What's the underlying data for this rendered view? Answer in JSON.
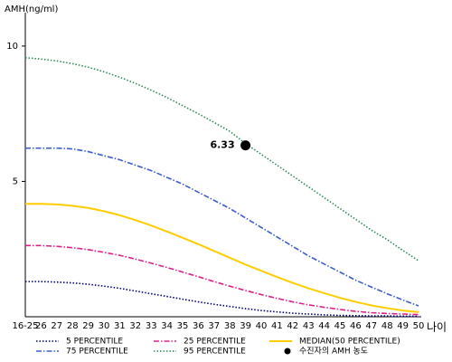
{
  "chart_data": {
    "type": "line",
    "y_label": "AMH(ng/ml)",
    "x_label": "나이",
    "categories": [
      "16-25",
      "26",
      "27",
      "28",
      "29",
      "30",
      "31",
      "32",
      "33",
      "34",
      "35",
      "36",
      "37",
      "38",
      "39",
      "40",
      "41",
      "42",
      "43",
      "44",
      "45",
      "46",
      "47",
      "48",
      "49",
      "50"
    ],
    "ylim": [
      0,
      11.3
    ],
    "yticks": [
      5,
      10
    ],
    "series": [
      {
        "name": "5 PERCENTILE",
        "color": "#000080",
        "dash": "dotted",
        "values": [
          1.3,
          1.3,
          1.28,
          1.25,
          1.2,
          1.13,
          1.05,
          0.95,
          0.85,
          0.75,
          0.65,
          0.55,
          0.46,
          0.38,
          0.3,
          0.23,
          0.18,
          0.13,
          0.1,
          0.07,
          0.05,
          0.04,
          0.03,
          0.03,
          0.02,
          0.02
        ]
      },
      {
        "name": "25 PERCENTILE",
        "color": "#e0208a",
        "dash": "dashdot",
        "values": [
          2.63,
          2.63,
          2.6,
          2.55,
          2.48,
          2.38,
          2.27,
          2.13,
          1.98,
          1.82,
          1.65,
          1.48,
          1.3,
          1.13,
          0.97,
          0.82,
          0.68,
          0.55,
          0.44,
          0.35,
          0.27,
          0.2,
          0.15,
          0.12,
          0.1,
          0.08
        ]
      },
      {
        "name": "MEDIAN(50 PERCENTILE)",
        "color": "#ffcc00",
        "dash": "solid",
        "values": [
          4.17,
          4.17,
          4.15,
          4.1,
          4.02,
          3.9,
          3.75,
          3.57,
          3.37,
          3.15,
          2.92,
          2.68,
          2.43,
          2.18,
          1.93,
          1.7,
          1.47,
          1.25,
          1.05,
          0.87,
          0.7,
          0.55,
          0.42,
          0.32,
          0.23,
          0.17
        ]
      },
      {
        "name": "75 PERCENTILE",
        "color": "#3a5fcd",
        "dash": "dashdot",
        "values": [
          6.23,
          6.23,
          6.23,
          6.2,
          6.1,
          5.95,
          5.8,
          5.6,
          5.4,
          5.15,
          4.9,
          4.6,
          4.3,
          4.0,
          3.65,
          3.3,
          2.95,
          2.6,
          2.25,
          1.95,
          1.65,
          1.35,
          1.1,
          0.85,
          0.62,
          0.4
        ]
      },
      {
        "name": "95 PERCENTILE",
        "color": "#2e8b57",
        "dash": "dotted",
        "values": [
          9.57,
          9.52,
          9.45,
          9.35,
          9.22,
          9.05,
          8.85,
          8.62,
          8.37,
          8.1,
          7.8,
          7.5,
          7.18,
          6.85,
          6.4,
          6.0,
          5.6,
          5.2,
          4.8,
          4.4,
          4.0,
          3.6,
          3.2,
          2.85,
          2.45,
          2.07
        ]
      },
      {
        "name": "수진자의 AMH 농도",
        "color": "#000000",
        "dash": "marker",
        "values": [
          null,
          null,
          null,
          null,
          null,
          null,
          null,
          null,
          null,
          null,
          null,
          null,
          null,
          null,
          6.33,
          null,
          null,
          null,
          null,
          null,
          null,
          null,
          null,
          null,
          null,
          null
        ]
      }
    ]
  }
}
